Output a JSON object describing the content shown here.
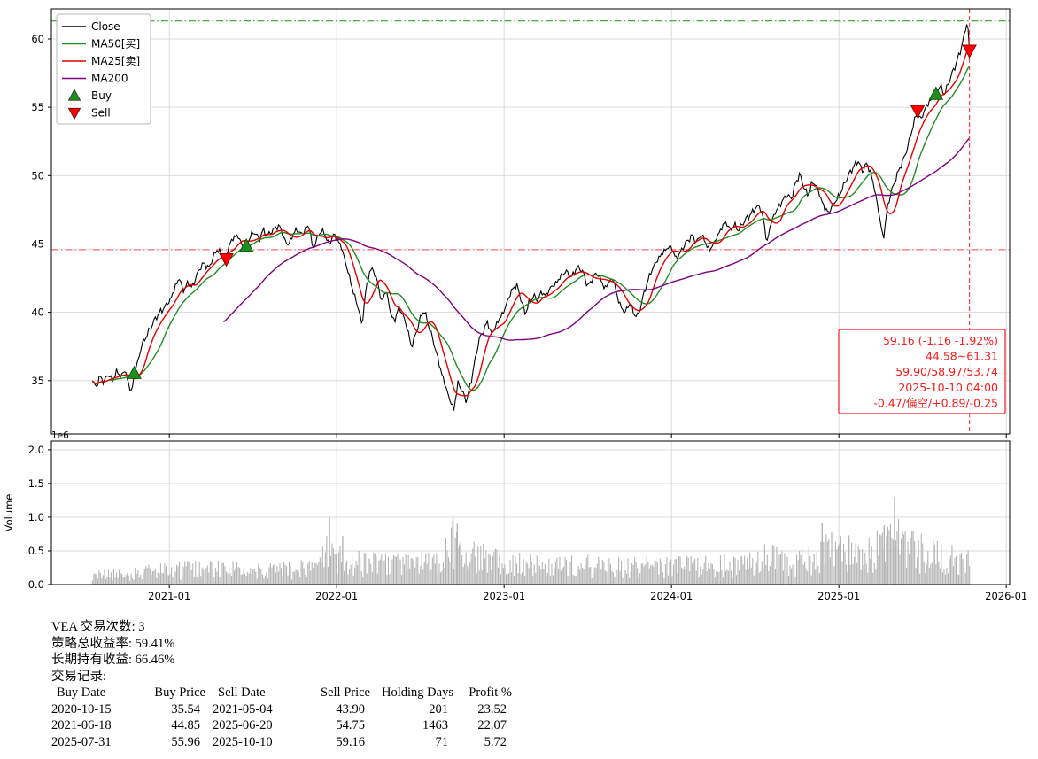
{
  "chart_data": {
    "type": "line",
    "panels": [
      "price",
      "volume"
    ],
    "x_axis": {
      "lim": [
        2020.295,
        2026.02
      ],
      "ticks": [
        2021,
        2022,
        2023,
        2024,
        2025,
        2026
      ],
      "tick_labels": [
        "2021-01",
        "2022-01",
        "2023-01",
        "2024-01",
        "2025-01",
        "2026-01"
      ]
    },
    "price": {
      "ylim": [
        31.1,
        62.2
      ],
      "yticks": [
        35,
        40,
        45,
        50,
        55,
        60
      ],
      "close_color": "#000000",
      "noise_amp": 0.28,
      "ma": [
        {
          "name": "ma50-line",
          "label": "MA50[买]",
          "days": 50,
          "color": "#228b22"
        },
        {
          "name": "ma25-line",
          "label": "MA25[卖]",
          "days": 25,
          "color": "#e60000"
        },
        {
          "name": "ma200-line",
          "label": "MA200",
          "days": 200,
          "color": "#800080"
        }
      ],
      "hlines": [
        {
          "value": 61.31,
          "color": "#33a02c"
        },
        {
          "value": 44.58,
          "color": "#ff6666"
        }
      ],
      "vline": {
        "x": 2025.78,
        "color": "#ff4444"
      },
      "close_anchors": [
        [
          2020.54,
          35.0
        ],
        [
          2020.56,
          34.5
        ],
        [
          2020.585,
          35.3
        ],
        [
          2020.61,
          34.9
        ],
        [
          2020.635,
          35.5
        ],
        [
          2020.66,
          35.0
        ],
        [
          2020.685,
          35.7
        ],
        [
          2020.71,
          35.3
        ],
        [
          2020.735,
          35.8
        ],
        [
          2020.755,
          34.8
        ],
        [
          2020.775,
          34.1
        ],
        [
          2020.79,
          35.54
        ],
        [
          2020.81,
          36.3
        ],
        [
          2020.835,
          37.6
        ],
        [
          2020.86,
          38.2
        ],
        [
          2020.885,
          38.8
        ],
        [
          2020.91,
          39.4
        ],
        [
          2020.935,
          39.9
        ],
        [
          2020.96,
          40.2
        ],
        [
          2020.985,
          40.6
        ],
        [
          2021.01,
          41.0
        ],
        [
          2021.035,
          41.9
        ],
        [
          2021.06,
          42.5
        ],
        [
          2021.085,
          41.5
        ],
        [
          2021.11,
          42.2
        ],
        [
          2021.135,
          41.8
        ],
        [
          2021.16,
          42.6
        ],
        [
          2021.185,
          43.3
        ],
        [
          2021.21,
          43.6
        ],
        [
          2021.235,
          43.2
        ],
        [
          2021.26,
          44.0
        ],
        [
          2021.285,
          44.6
        ],
        [
          2021.31,
          44.3
        ],
        [
          2021.335,
          43.9
        ],
        [
          2021.36,
          45.0
        ],
        [
          2021.385,
          45.5
        ],
        [
          2021.41,
          45.6
        ],
        [
          2021.435,
          44.9
        ],
        [
          2021.46,
          44.85
        ],
        [
          2021.485,
          45.6
        ],
        [
          2021.51,
          45.9
        ],
        [
          2021.535,
          45.3
        ],
        [
          2021.56,
          46.0
        ],
        [
          2021.585,
          45.6
        ],
        [
          2021.61,
          45.9
        ],
        [
          2021.635,
          46.2
        ],
        [
          2021.66,
          46.3
        ],
        [
          2021.685,
          45.4
        ],
        [
          2021.71,
          44.9
        ],
        [
          2021.735,
          45.6
        ],
        [
          2021.76,
          46.1
        ],
        [
          2021.785,
          45.7
        ],
        [
          2021.81,
          46.0
        ],
        [
          2021.835,
          46.4
        ],
        [
          2021.855,
          44.6
        ],
        [
          2021.88,
          45.3
        ],
        [
          2021.905,
          46.0
        ],
        [
          2021.93,
          45.7
        ],
        [
          2021.955,
          44.9
        ],
        [
          2021.98,
          45.7
        ],
        [
          2022.005,
          45.3
        ],
        [
          2022.03,
          44.7
        ],
        [
          2022.055,
          43.5
        ],
        [
          2022.08,
          42.4
        ],
        [
          2022.105,
          41.2
        ],
        [
          2022.13,
          40.3
        ],
        [
          2022.15,
          39.0
        ],
        [
          2022.17,
          41.2
        ],
        [
          2022.195,
          43.0
        ],
        [
          2022.22,
          43.1
        ],
        [
          2022.245,
          42.1
        ],
        [
          2022.27,
          40.7
        ],
        [
          2022.295,
          41.7
        ],
        [
          2022.32,
          40.0
        ],
        [
          2022.345,
          39.3
        ],
        [
          2022.37,
          40.4
        ],
        [
          2022.395,
          39.8
        ],
        [
          2022.42,
          38.9
        ],
        [
          2022.445,
          37.5
        ],
        [
          2022.47,
          38.3
        ],
        [
          2022.495,
          39.4
        ],
        [
          2022.52,
          40.2
        ],
        [
          2022.545,
          39.2
        ],
        [
          2022.57,
          38.2
        ],
        [
          2022.6,
          36.8
        ],
        [
          2022.625,
          35.6
        ],
        [
          2022.65,
          34.6
        ],
        [
          2022.675,
          33.6
        ],
        [
          2022.7,
          32.9
        ],
        [
          2022.725,
          34.9
        ],
        [
          2022.75,
          34.2
        ],
        [
          2022.775,
          33.5
        ],
        [
          2022.8,
          34.8
        ],
        [
          2022.825,
          36.4
        ],
        [
          2022.85,
          38.0
        ],
        [
          2022.875,
          38.6
        ],
        [
          2022.9,
          39.3
        ],
        [
          2022.925,
          38.4
        ],
        [
          2022.95,
          39.0
        ],
        [
          2022.975,
          39.6
        ],
        [
          2023.0,
          40.1
        ],
        [
          2023.025,
          41.0
        ],
        [
          2023.05,
          41.7
        ],
        [
          2023.075,
          42.0
        ],
        [
          2023.1,
          41.0
        ],
        [
          2023.125,
          39.9
        ],
        [
          2023.15,
          40.7
        ],
        [
          2023.175,
          41.2
        ],
        [
          2023.2,
          40.9
        ],
        [
          2023.225,
          41.5
        ],
        [
          2023.25,
          41.2
        ],
        [
          2023.275,
          41.8
        ],
        [
          2023.3,
          42.0
        ],
        [
          2023.325,
          42.4
        ],
        [
          2023.35,
          42.8
        ],
        [
          2023.375,
          43.0
        ],
        [
          2023.4,
          42.5
        ],
        [
          2023.425,
          43.1
        ],
        [
          2023.45,
          43.3
        ],
        [
          2023.475,
          42.8
        ],
        [
          2023.5,
          41.9
        ],
        [
          2023.525,
          42.4
        ],
        [
          2023.55,
          42.9
        ],
        [
          2023.575,
          42.5
        ],
        [
          2023.6,
          41.7
        ],
        [
          2023.625,
          42.2
        ],
        [
          2023.65,
          42.5
        ],
        [
          2023.675,
          41.2
        ],
        [
          2023.7,
          40.3
        ],
        [
          2023.725,
          40.0
        ],
        [
          2023.75,
          40.7
        ],
        [
          2023.775,
          39.9
        ],
        [
          2023.8,
          39.7
        ],
        [
          2023.825,
          40.9
        ],
        [
          2023.85,
          42.0
        ],
        [
          2023.875,
          42.9
        ],
        [
          2023.9,
          43.5
        ],
        [
          2023.925,
          44.0
        ],
        [
          2023.95,
          44.4
        ],
        [
          2023.975,
          44.7
        ],
        [
          2024.0,
          44.8
        ],
        [
          2024.025,
          43.9
        ],
        [
          2024.05,
          44.3
        ],
        [
          2024.075,
          44.9
        ],
        [
          2024.1,
          45.3
        ],
        [
          2024.125,
          45.6
        ],
        [
          2024.15,
          45.1
        ],
        [
          2024.175,
          45.7
        ],
        [
          2024.2,
          45.2
        ],
        [
          2024.225,
          44.5
        ],
        [
          2024.25,
          45.0
        ],
        [
          2024.275,
          45.6
        ],
        [
          2024.3,
          46.2
        ],
        [
          2024.325,
          46.6
        ],
        [
          2024.35,
          46.0
        ],
        [
          2024.375,
          46.4
        ],
        [
          2024.4,
          46.0
        ],
        [
          2024.425,
          46.5
        ],
        [
          2024.45,
          46.9
        ],
        [
          2024.475,
          47.2
        ],
        [
          2024.5,
          47.6
        ],
        [
          2024.525,
          47.8
        ],
        [
          2024.55,
          46.8
        ],
        [
          2024.57,
          45.0
        ],
        [
          2024.59,
          46.4
        ],
        [
          2024.615,
          47.2
        ],
        [
          2024.64,
          47.7
        ],
        [
          2024.665,
          48.2
        ],
        [
          2024.69,
          48.6
        ],
        [
          2024.715,
          48.3
        ],
        [
          2024.74,
          49.4
        ],
        [
          2024.765,
          50.1
        ],
        [
          2024.79,
          49.2
        ],
        [
          2024.815,
          48.5
        ],
        [
          2024.84,
          49.5
        ],
        [
          2024.865,
          49.3
        ],
        [
          2024.89,
          48.4
        ],
        [
          2024.915,
          47.6
        ],
        [
          2024.94,
          47.3
        ],
        [
          2024.965,
          47.9
        ],
        [
          2024.99,
          48.3
        ],
        [
          2025.015,
          48.9
        ],
        [
          2025.04,
          49.6
        ],
        [
          2025.065,
          50.2
        ],
        [
          2025.09,
          50.7
        ],
        [
          2025.115,
          51.1
        ],
        [
          2025.14,
          50.3
        ],
        [
          2025.165,
          50.9
        ],
        [
          2025.19,
          50.2
        ],
        [
          2025.215,
          48.9
        ],
        [
          2025.24,
          47.2
        ],
        [
          2025.265,
          45.3
        ],
        [
          2025.29,
          47.7
        ],
        [
          2025.315,
          48.9
        ],
        [
          2025.34,
          49.8
        ],
        [
          2025.365,
          50.6
        ],
        [
          2025.39,
          51.3
        ],
        [
          2025.415,
          52.3
        ],
        [
          2025.44,
          53.5
        ],
        [
          2025.465,
          54.6
        ],
        [
          2025.49,
          54.1
        ],
        [
          2025.515,
          54.9
        ],
        [
          2025.545,
          55.5
        ],
        [
          2025.58,
          55.96
        ],
        [
          2025.605,
          56.6
        ],
        [
          2025.63,
          55.9
        ],
        [
          2025.655,
          56.8
        ],
        [
          2025.68,
          57.6
        ],
        [
          2025.7,
          58.2
        ],
        [
          2025.72,
          58.9
        ],
        [
          2025.74,
          59.8
        ],
        [
          2025.755,
          60.6
        ],
        [
          2025.765,
          61.3
        ],
        [
          2025.775,
          60.3
        ],
        [
          2025.78,
          59.16
        ]
      ]
    },
    "volume": {
      "ylabel": "Volume",
      "scale_label": "1e6",
      "color": "#b5b5b5",
      "ylim": [
        0,
        2.13
      ],
      "yticks": [
        0,
        0.5,
        1,
        1.5,
        2
      ],
      "envelope": [
        [
          2020.54,
          0.22
        ],
        [
          2020.8,
          0.25
        ],
        [
          2021.0,
          0.32
        ],
        [
          2021.3,
          0.34
        ],
        [
          2021.6,
          0.32
        ],
        [
          2021.85,
          0.35
        ],
        [
          2021.93,
          0.6
        ],
        [
          2021.96,
          1.0
        ],
        [
          2022.0,
          0.6
        ],
        [
          2022.05,
          0.45
        ],
        [
          2022.15,
          0.5
        ],
        [
          2022.3,
          0.45
        ],
        [
          2022.45,
          0.45
        ],
        [
          2022.6,
          0.55
        ],
        [
          2022.67,
          0.8
        ],
        [
          2022.7,
          1.0
        ],
        [
          2022.75,
          0.9
        ],
        [
          2022.82,
          0.65
        ],
        [
          2022.9,
          0.55
        ],
        [
          2023.0,
          0.5
        ],
        [
          2023.15,
          0.45
        ],
        [
          2023.3,
          0.4
        ],
        [
          2023.5,
          0.42
        ],
        [
          2023.7,
          0.38
        ],
        [
          2023.85,
          0.42
        ],
        [
          2024.0,
          0.42
        ],
        [
          2024.15,
          0.4
        ],
        [
          2024.3,
          0.42
        ],
        [
          2024.45,
          0.44
        ],
        [
          2024.57,
          0.62
        ],
        [
          2024.7,
          0.5
        ],
        [
          2024.85,
          0.6
        ],
        [
          2024.95,
          0.75
        ],
        [
          2025.05,
          0.65
        ],
        [
          2025.15,
          0.68
        ],
        [
          2025.25,
          0.8
        ],
        [
          2025.33,
          1.05
        ],
        [
          2025.4,
          0.8
        ],
        [
          2025.5,
          0.7
        ],
        [
          2025.6,
          0.6
        ],
        [
          2025.7,
          0.55
        ],
        [
          2025.78,
          0.6
        ]
      ],
      "spikes": [
        [
          2021.957,
          1.0
        ],
        [
          2022.035,
          0.72
        ],
        [
          2022.695,
          0.99
        ],
        [
          2022.72,
          0.9
        ],
        [
          2024.9,
          0.92
        ],
        [
          2025.06,
          0.73
        ],
        [
          2025.27,
          0.88
        ],
        [
          2025.332,
          1.3
        ]
      ]
    },
    "legend": [
      {
        "label": "Close",
        "type": "line",
        "color": "#000000"
      },
      {
        "label": "MA50[买]",
        "type": "line",
        "color": "#228b22"
      },
      {
        "label": "MA25[卖]",
        "type": "line",
        "color": "#e60000"
      },
      {
        "label": "MA200",
        "type": "line",
        "color": "#800080"
      },
      {
        "label": "Buy",
        "type": "triangle-up",
        "color": "#1e8f1e"
      },
      {
        "label": "Sell",
        "type": "triangle-down",
        "color": "#ff0000"
      }
    ],
    "trade_markers": {
      "buy_color": "#1e8f1e",
      "sell_color": "#ff0000",
      "buys": [
        [
          2020.79,
          35.54
        ],
        [
          2021.46,
          44.85
        ],
        [
          2025.58,
          55.96
        ]
      ],
      "sells": [
        [
          2021.34,
          43.9
        ],
        [
          2025.47,
          54.75
        ],
        [
          2025.78,
          59.16
        ]
      ]
    },
    "annotation": {
      "color": "#ff1a1a",
      "lines": [
        "59.16 (-1.16 -1.92%)",
        "44.58~61.31",
        "59.90/58.97/53.74",
        "2025-10-10 04:00",
        "-0.47/偏空/+0.89/-0.25"
      ]
    }
  },
  "stats": {
    "lines": [
      "VEA 交易次数: 3",
      "策略总收益率: 59.41%",
      "长期持有收益: 66.46%",
      "交易记录:"
    ],
    "table": {
      "headers": [
        "Buy Date",
        "Buy Price",
        "Sell Date",
        "Sell Price",
        "Holding Days",
        "Profit %"
      ],
      "rows": [
        [
          "2020-10-15",
          "35.54",
          "2021-05-04",
          "43.90",
          "201",
          "23.52"
        ],
        [
          "2021-06-18",
          "44.85",
          "2025-06-20",
          "54.75",
          "1463",
          "22.07"
        ],
        [
          "2025-07-31",
          "55.96",
          "2025-10-10",
          "59.16",
          "71",
          "5.72"
        ]
      ]
    }
  }
}
